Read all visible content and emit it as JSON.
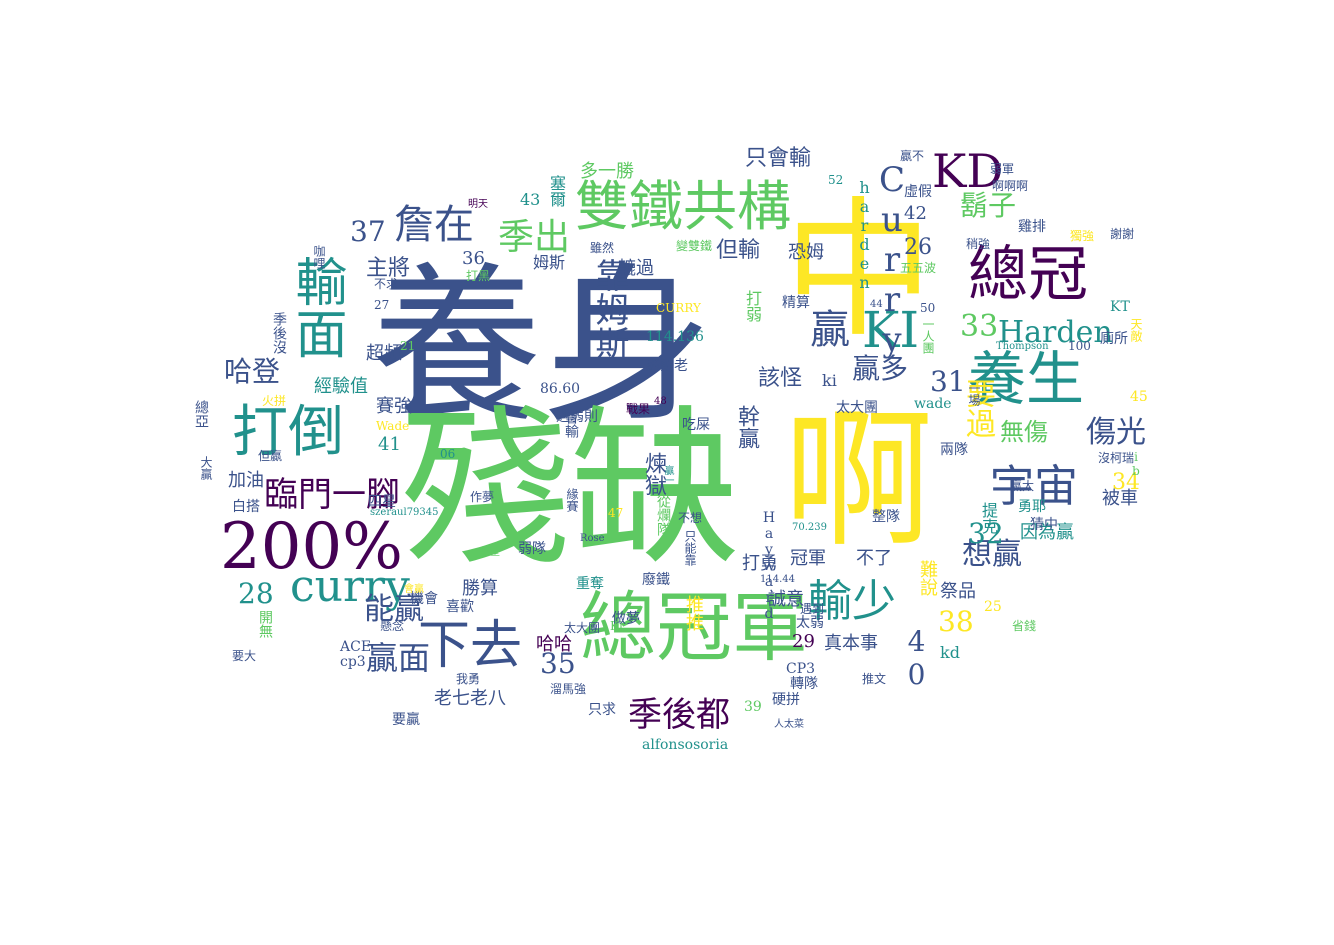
{
  "palette": [
    "#440154",
    "#3b528b",
    "#21918c",
    "#5ec962",
    "#fde725"
  ],
  "words": [
    {
      "text": "養身",
      "color": "#3b528b"
    },
    {
      "text": "殘缺",
      "color": "#5ec962"
    },
    {
      "text": "中",
      "color": "#fde725"
    },
    {
      "text": "啊",
      "color": "#fde725"
    },
    {
      "text": "總冠軍",
      "color": "#5ec962"
    },
    {
      "text": "雙鐵共構",
      "color": "#5ec962"
    },
    {
      "text": "200%",
      "color": "#440154"
    },
    {
      "text": "總冠",
      "color": "#440154"
    },
    {
      "text": "養生",
      "color": "#21918c"
    },
    {
      "text": "打倒",
      "color": "#21918c"
    },
    {
      "text": "輸面",
      "color": "#21918c"
    },
    {
      "text": "下去",
      "color": "#3b528b"
    },
    {
      "text": "KD",
      "color": "#440154"
    },
    {
      "text": "KI",
      "color": "#21918c"
    },
    {
      "text": "curry",
      "color": "#21918c"
    },
    {
      "text": "宇宙",
      "color": "#3b528b"
    },
    {
      "text": "輸少",
      "color": "#21918c"
    },
    {
      "text": "季後都",
      "color": "#440154"
    },
    {
      "text": "詹在",
      "color": "#3b528b"
    },
    {
      "text": "季出",
      "color": "#5ec962"
    },
    {
      "text": "靠姆斯",
      "color": "#3b528b"
    },
    {
      "text": "Curry",
      "color": "#3b528b"
    },
    {
      "text": "贏",
      "color": "#3b528b"
    },
    {
      "text": "Harden",
      "color": "#21918c"
    },
    {
      "text": "臨門一腳",
      "color": "#440154"
    },
    {
      "text": "贏面",
      "color": "#3b528b"
    },
    {
      "text": "傷光",
      "color": "#3b528b"
    },
    {
      "text": "想贏",
      "color": "#3b528b"
    },
    {
      "text": "鬍子",
      "color": "#5ec962"
    },
    {
      "text": "能贏",
      "color": "#3b528b"
    },
    {
      "text": "贏多",
      "color": "#3b528b"
    },
    {
      "text": "要過",
      "color": "#fde725"
    },
    {
      "text": "哈登",
      "color": "#3b528b"
    },
    {
      "text": "33",
      "color": "#5ec962"
    },
    {
      "text": "31",
      "color": "#3b528b"
    },
    {
      "text": "32",
      "color": "#21918c"
    },
    {
      "text": "28",
      "color": "#21918c"
    },
    {
      "text": "35",
      "color": "#3b528b"
    },
    {
      "text": "37",
      "color": "#3b528b"
    },
    {
      "text": "38",
      "color": "#fde725"
    },
    {
      "text": "40",
      "color": "#3b528b"
    },
    {
      "text": "34",
      "color": "#fde725"
    },
    {
      "text": "26",
      "color": "#3b528b"
    },
    {
      "text": "29",
      "color": "#440154"
    },
    {
      "text": "該怪",
      "color": "#3b528b"
    },
    {
      "text": "只會輸",
      "color": "#3b528b"
    },
    {
      "text": "但輸",
      "color": "#3b528b"
    },
    {
      "text": "幹贏",
      "color": "#3b528b"
    },
    {
      "text": "煉獄",
      "color": "#3b528b"
    },
    {
      "text": "無傷",
      "color": "#5ec962"
    },
    {
      "text": "主將",
      "color": "#3b528b"
    },
    {
      "text": "真本事",
      "color": "#3b528b"
    },
    {
      "text": "老七老八",
      "color": "#3b528b"
    },
    {
      "text": "因為贏",
      "color": "#21918c"
    },
    {
      "text": "提克",
      "color": "#21918c"
    },
    {
      "text": "被車",
      "color": "#3b528b"
    },
    {
      "text": "恐姆",
      "color": "#3b528b"
    },
    {
      "text": "harden",
      "color": "#21918c"
    },
    {
      "text": "42",
      "color": "#3b528b"
    },
    {
      "text": "ki",
      "color": "#3b528b"
    },
    {
      "text": "打弱",
      "color": "#5ec962"
    },
    {
      "text": "賽強",
      "color": "#3b528b"
    },
    {
      "text": "勝算",
      "color": "#3b528b"
    },
    {
      "text": "哈哈",
      "color": "#440154"
    },
    {
      "text": "誠意",
      "color": "#3b528b"
    },
    {
      "text": "不了",
      "color": "#3b528b"
    },
    {
      "text": "冠軍",
      "color": "#3b528b"
    },
    {
      "text": "難說",
      "color": "#fde725"
    },
    {
      "text": "祭品",
      "color": "#3b528b"
    },
    {
      "text": "加油",
      "color": "#3b528b"
    },
    {
      "text": "41",
      "color": "#21918c"
    },
    {
      "text": "打勇",
      "color": "#3b528b"
    },
    {
      "text": "推推",
      "color": "#fde725"
    },
    {
      "text": "kd",
      "color": "#21918c"
    },
    {
      "text": "Hayward",
      "color": "#3b528b"
    },
    {
      "text": "超頻",
      "color": "#3b528b"
    },
    {
      "text": "經驗值",
      "color": "#21918c"
    },
    {
      "text": "轆過",
      "color": "#3b528b"
    },
    {
      "text": "姆斯",
      "color": "#3b528b"
    },
    {
      "text": "36",
      "color": "#3b528b"
    },
    {
      "text": "43",
      "color": "#21918c"
    },
    {
      "text": "塞爾",
      "color": "#21918c"
    },
    {
      "text": "多一勝",
      "color": "#5ec962"
    },
    {
      "text": "太大團",
      "color": "#3b528b"
    },
    {
      "text": "整隊",
      "color": "#3b528b"
    },
    {
      "text": "雞排",
      "color": "#3b528b"
    },
    {
      "text": "虛假",
      "color": "#3b528b"
    },
    {
      "text": "弱隊",
      "color": "#3b528b"
    },
    {
      "text": "四星",
      "color": "#3b528b"
    },
    {
      "text": "白搭",
      "color": "#3b528b"
    },
    {
      "text": "喜歡",
      "color": "#3b528b"
    },
    {
      "text": "要贏",
      "color": "#3b528b"
    },
    {
      "text": "只求",
      "color": "#3b528b"
    },
    {
      "text": "硬拼",
      "color": "#3b528b"
    },
    {
      "text": "轉隊",
      "color": "#3b528b"
    },
    {
      "text": "CP3",
      "color": "#3b528b"
    },
    {
      "text": "cp3",
      "color": "#3b528b"
    },
    {
      "text": "ACE",
      "color": "#3b528b"
    },
    {
      "text": "開無",
      "color": "#5ec962"
    },
    {
      "text": "25",
      "color": "#fde725"
    },
    {
      "text": "39",
      "color": "#5ec962"
    },
    {
      "text": "45",
      "color": "#fde725"
    },
    {
      "text": "alfonsosoria",
      "color": "#21918c"
    },
    {
      "text": "wade",
      "color": "#21918c"
    },
    {
      "text": "機會",
      "color": "#3b528b"
    },
    {
      "text": "做夢",
      "color": "#3b528b"
    },
    {
      "text": "太弱",
      "color": "#3b528b"
    },
    {
      "text": "吃屎",
      "color": "#3b528b"
    },
    {
      "text": "姆斯老",
      "color": "#3b528b"
    },
    {
      "text": "114.136",
      "color": "#21918c"
    },
    {
      "text": "86.60",
      "color": "#3b528b"
    },
    {
      "text": "遇弱則",
      "color": "#3b528b"
    },
    {
      "text": "精算",
      "color": "#3b528b"
    },
    {
      "text": "從爛隊",
      "color": "#5ec962"
    },
    {
      "text": "不想",
      "color": "#3b528b"
    },
    {
      "text": "總亞",
      "color": "#3b528b"
    },
    {
      "text": "季後沒",
      "color": "#3b528b"
    },
    {
      "text": "兩隊",
      "color": "#3b528b"
    },
    {
      "text": "勇耶",
      "color": "#21918c"
    },
    {
      "text": "緣賽",
      "color": "#3b528b"
    },
    {
      "text": "重奪",
      "color": "#21918c"
    },
    {
      "text": "廢鐵",
      "color": "#3b528b"
    },
    {
      "text": "猜中",
      "color": "#3b528b"
    },
    {
      "text": "稍強",
      "color": "#3b528b"
    },
    {
      "text": "獨強",
      "color": "#fde725"
    },
    {
      "text": "謝謝",
      "color": "#3b528b"
    },
    {
      "text": "KT",
      "color": "#21918c"
    },
    {
      "text": "廁所",
      "color": "#3b528b"
    },
    {
      "text": "沒柯瑞",
      "color": "#3b528b"
    },
    {
      "text": "會輸",
      "color": "#3b528b"
    },
    {
      "text": "五五波",
      "color": "#5ec962"
    },
    {
      "text": "贏不",
      "color": "#3b528b"
    },
    {
      "text": "啊啊啊",
      "color": "#3b528b"
    },
    {
      "text": "弱軍",
      "color": "#3b528b"
    },
    {
      "text": "雖然",
      "color": "#3b528b"
    },
    {
      "text": "變雙鐵",
      "color": "#5ec962"
    },
    {
      "text": "咖哩",
      "color": "#3b528b"
    },
    {
      "text": "不求",
      "color": "#3b528b"
    },
    {
      "text": "打黑",
      "color": "#5ec962"
    },
    {
      "text": "火拼",
      "color": "#fde725"
    },
    {
      "text": "但贏",
      "color": "#3b528b"
    },
    {
      "text": "作夢",
      "color": "#3b528b"
    },
    {
      "text": "懸念",
      "color": "#3b528b"
    },
    {
      "text": "省錢",
      "color": "#5ec962"
    },
    {
      "text": "我勇",
      "color": "#3b528b"
    },
    {
      "text": "溜馬強",
      "color": "#3b528b"
    },
    {
      "text": "推文",
      "color": "#3b528b"
    },
    {
      "text": "遇到",
      "color": "#3b528b"
    },
    {
      "text": "一場",
      "color": "#3b528b"
    },
    {
      "text": "贏太",
      "color": "#3b528b"
    },
    {
      "text": "Wade",
      "color": "#fde725"
    },
    {
      "text": "52",
      "color": "#21918c"
    },
    {
      "text": "50",
      "color": "#3b528b"
    },
    {
      "text": "100",
      "color": "#3b528b"
    },
    {
      "text": "47",
      "color": "#fde725"
    },
    {
      "text": "06",
      "color": "#21918c"
    },
    {
      "text": "21",
      "color": "#5ec962"
    },
    {
      "text": "27",
      "color": "#3b528b"
    },
    {
      "text": "CURRY",
      "color": "#fde725"
    },
    {
      "text": "贏一",
      "color": "#21918c"
    },
    {
      "text": "只能靠",
      "color": "#3b528b"
    },
    {
      "text": "Ki",
      "color": "#5ec962"
    },
    {
      "text": "太大團",
      "color": "#3b528b"
    },
    {
      "text": "要大",
      "color": "#3b528b"
    },
    {
      "text": "人太菜",
      "color": "#3b528b"
    },
    {
      "text": "明天",
      "color": "#440154"
    },
    {
      "text": "絕望",
      "color": "#5ec962"
    },
    {
      "text": "會贏",
      "color": "#fde725"
    },
    {
      "text": "戰果",
      "color": "#440154"
    },
    {
      "text": "Thompson",
      "color": "#21918c"
    },
    {
      "text": "Rose",
      "color": "#3b528b"
    },
    {
      "text": "ib",
      "color": "#5ec962"
    },
    {
      "text": "天敵",
      "color": "#fde725"
    },
    {
      "text": "48",
      "color": "#440154"
    },
    {
      "text": "44",
      "color": "#3b528b"
    },
    {
      "text": "70.239",
      "color": "#21918c"
    },
    {
      "text": "114.44",
      "color": "#3b528b"
    },
    {
      "text": "szeraul79345",
      "color": "#21918c"
    },
    {
      "text": "一人團",
      "color": "#5ec962"
    },
    {
      "text": "大贏",
      "color": "#3b528b"
    }
  ]
}
